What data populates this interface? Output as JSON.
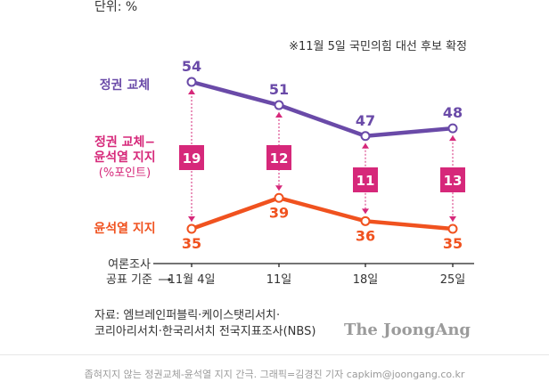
{
  "unit_label": "단위: %",
  "note": "※11월 5일 국민의힘 대선 후보 확정",
  "chart_data": {
    "type": "line",
    "categories": [
      "11월 4일",
      "11일",
      "18일",
      "25일"
    ],
    "series": [
      {
        "name": "정권 교체",
        "values": [
          54,
          51,
          47,
          48
        ],
        "color": "#6a4aa8"
      },
      {
        "name": "윤석열 지지",
        "values": [
          35,
          39,
          36,
          35
        ],
        "color": "#f0521f"
      }
    ],
    "gap": {
      "label_lines": [
        "정권 교체−",
        "윤석열 지지"
      ],
      "unit": "(%포인트)",
      "values": [
        19,
        12,
        11,
        13
      ],
      "color": "#d6287a"
    },
    "ylim": [
      30,
      58
    ],
    "axis_rows": [
      "여론조사",
      "공표 기준"
    ],
    "legend_placement": "left"
  },
  "colors": {
    "axis": "#222222",
    "text": "#333333",
    "gap_text": "#ffffff"
  },
  "source": {
    "line1": "자료: 엠브레인퍼블릭·케이스탯리서치·",
    "line2": "코리아리서치·한국리서치 전국지표조사(NBS)"
  },
  "brand": "The JoongAng",
  "caption": "좁혀지지 않는 정권교체-윤석열 지지 간극. 그래픽=김경진 기자 capkim@joongang.co.kr"
}
